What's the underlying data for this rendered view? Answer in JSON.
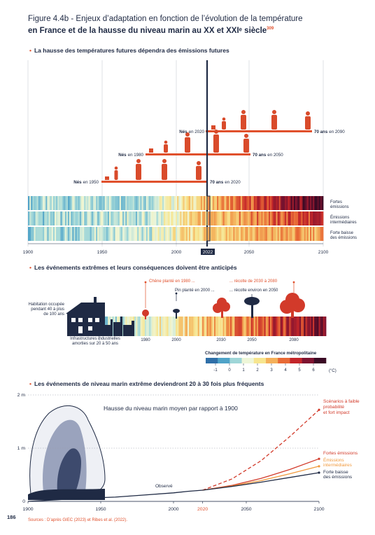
{
  "header": {
    "title_line1": "Figure 4.4b - Enjeux d’adaptation en fonction de l’évolution de la température",
    "title_line2": "en France et de la hausse du niveau marin au XX et XXIᵉ siècle",
    "title_note": "309"
  },
  "section1": {
    "title": "La hausse des températures futures dépendra des émissions futures",
    "cohorts": [
      {
        "born_label": "Nés",
        "born_year": "en 2020",
        "end_label": "70 ans",
        "end_year": "en 2090"
      },
      {
        "born_label": "Nés",
        "born_year": "en 1980",
        "end_label": "70 ans",
        "end_year": "en 2050"
      },
      {
        "born_label": "Nés",
        "born_year": "en 1950",
        "end_label": "70 ans",
        "end_year": "en 2020"
      }
    ],
    "stripe_labels": [
      "Fortes émissions",
      "Émissions intermédiaires",
      "Forte baisse des émissions"
    ],
    "axis_ticks": [
      "1900",
      "1950",
      "2000",
      "2022",
      "2050",
      "2100"
    ]
  },
  "section2": {
    "title": "Les événements extrêmes et leurs conséquences doivent être anticipés",
    "left_label": "Habitation occupée pendant 40 à plus de 100 ans",
    "industry_label": "Infrastructures industrielles amorties sur 20 à 50 ans",
    "annot_chene": "Chêne planté en 1980 ...",
    "annot_pin": "Pin planté en 2000 ...",
    "annot_recolte1": "... récolte de 2030 à 2080",
    "annot_recolte2": "... récolte environ en 2050",
    "axis_ticks": [
      "1980",
      "2000",
      "2030",
      "2050",
      "2080"
    ],
    "colorbar_title": "Changement de température en France métropolitaine",
    "colorbar_ticks": [
      "-1",
      "0",
      "1",
      "2",
      "3",
      "4",
      "5",
      "6"
    ],
    "colorbar_unit": "(°C)",
    "colorbar_colors": [
      "#2f6fa8",
      "#4fa3c8",
      "#9fd6d8",
      "#eef6d8",
      "#f7e58f",
      "#f4b05a",
      "#e86a36",
      "#c3262a",
      "#7e1330",
      "#3a0a24"
    ]
  },
  "section3": {
    "title": "Les événements de niveau marin extrême deviendront 20 à 30 fois plus fréquents",
    "inner_title": "Hausse du niveau marin moyen par rapport à 1900",
    "observed_label": "Observé",
    "labels": {
      "high_impact": "Scénarios à faible probabilité et fort impact",
      "strong": "Fortes émissions",
      "intermediate": "Émissions intermédiaires",
      "low": "Forte baisse des émissions"
    }
  },
  "chart_data": {
    "type": "line",
    "title": "",
    "xlabel": "",
    "ylabel": "",
    "xlim": [
      1900,
      2100
    ],
    "ylim": [
      0,
      2
    ],
    "x_ticks": [
      "1900",
      "1950",
      "2000",
      "2020",
      "2050",
      "2100"
    ],
    "y_ticks": [
      "0",
      "1 m",
      "2 m"
    ],
    "series": [
      {
        "name": "Observé",
        "color": "#1f2a44",
        "style": "solid",
        "x": [
          1900,
          1920,
          1940,
          1960,
          1980,
          2000,
          2010,
          2020
        ],
        "y": [
          0,
          0.03,
          0.06,
          0.08,
          0.12,
          0.16,
          0.19,
          0.21
        ]
      },
      {
        "name": "Scénarios à faible probabilité et fort impact",
        "color": "#d23a2a",
        "style": "dashed",
        "x": [
          2020,
          2040,
          2060,
          2080,
          2100
        ],
        "y": [
          0.21,
          0.42,
          0.76,
          1.22,
          1.72
        ]
      },
      {
        "name": "Fortes émissions",
        "color": "#d23a2a",
        "style": "solid",
        "x": [
          2020,
          2040,
          2060,
          2080,
          2100
        ],
        "y": [
          0.21,
          0.3,
          0.43,
          0.6,
          0.8
        ]
      },
      {
        "name": "Émissions intermédiaires",
        "color": "#f19a3e",
        "style": "solid",
        "x": [
          2020,
          2040,
          2060,
          2080,
          2100
        ],
        "y": [
          0.21,
          0.29,
          0.39,
          0.52,
          0.66
        ]
      },
      {
        "name": "Forte baisse des émissions",
        "color": "#1f2a44",
        "style": "solid",
        "x": [
          2020,
          2040,
          2060,
          2080,
          2100
        ],
        "y": [
          0.21,
          0.28,
          0.36,
          0.45,
          0.54
        ]
      }
    ]
  },
  "footer": {
    "page_number": "186",
    "sources": "Sources : D’après GIEC (2023) et Ribes et al. (2022)."
  }
}
